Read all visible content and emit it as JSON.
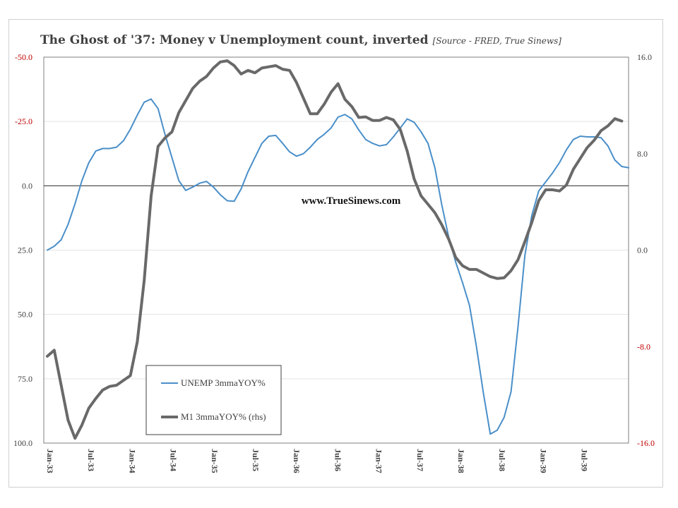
{
  "chart_data": {
    "type": "line",
    "title": "The Ghost of '37: Money v Unemployment count, inverted",
    "source_note": "[Source -  FRED, True Sinews]",
    "watermark": "www.TrueSinews.com",
    "x_tick_labels": [
      "Jan-33",
      "Jul-33",
      "Jan-34",
      "Jul-34",
      "Jan-35",
      "Jul-35",
      "Jan-36",
      "Jul-36",
      "Jan-37",
      "Jul-37",
      "Jan-38",
      "Jul-38",
      "Jan-39",
      "Jul-39"
    ],
    "left_axis": {
      "inverted": true,
      "ylim": [
        -50,
        100
      ],
      "ticks": [
        -50,
        -25,
        0,
        25,
        50,
        75,
        100
      ],
      "tick_labels": [
        "-50.0",
        "-25.0",
        "0.0",
        "25.0",
        "50.0",
        "75.0",
        "100.0"
      ],
      "negative_color": "#c00000"
    },
    "right_axis": {
      "ylim": [
        -16,
        16
      ],
      "ticks": [
        16,
        8,
        0,
        -8,
        -16
      ],
      "tick_labels": [
        "16.0",
        "8.0",
        "0.0",
        "-8.0",
        "-16.0"
      ],
      "negative_color": "#c00000"
    },
    "grid": true,
    "legend_position": "bottom-left",
    "series": [
      {
        "name": "UNEMP 3mmaYOY%",
        "axis": "left",
        "color": "#4a8fc9",
        "start": "Jan-33",
        "values": [
          25,
          23.5,
          21,
          15,
          7,
          -2,
          -9,
          -13.5,
          -14.5,
          -14.5,
          -15,
          -17.5,
          -22,
          -27.5,
          -32.5,
          -33.7,
          -30,
          -20,
          -11,
          -2,
          1.8,
          0.5,
          -1,
          -1.7,
          0.5,
          3.5,
          5.8,
          6,
          1.2,
          -5.5,
          -11,
          -16.5,
          -19.3,
          -19.6,
          -16.5,
          -13.2,
          -11.5,
          -12.5,
          -15,
          -18,
          -20,
          -22.5,
          -26.7,
          -27.7,
          -26,
          -21.7,
          -18,
          -16.5,
          -15.5,
          -16,
          -19,
          -22.5,
          -26,
          -24.7,
          -21,
          -16.5,
          -7,
          7.5,
          20,
          29.6,
          37.7,
          46.5,
          62.5,
          80.5,
          96.5,
          95,
          90,
          80,
          55,
          27,
          11.5,
          2,
          -1.5,
          -5,
          -9,
          -14,
          -18,
          -19.3,
          -19,
          -19,
          -18.7,
          -15.5,
          -10,
          -7.5,
          -7
        ]
      },
      {
        "name": "M1 3mmaYOY% (rhs)",
        "axis": "right",
        "color": "#696969",
        "start": "Jan-33",
        "values": [
          -8.8,
          -8.3,
          -11.2,
          -14.1,
          -15.6,
          -14.5,
          -13.1,
          -12.3,
          -11.6,
          -11.3,
          -11.2,
          -10.8,
          -10.4,
          -7.6,
          -2.5,
          4.5,
          8.6,
          9.3,
          9.8,
          11.4,
          12.4,
          13.4,
          14,
          14.4,
          15.1,
          15.6,
          15.7,
          15.3,
          14.6,
          14.9,
          14.7,
          15.1,
          15.2,
          15.3,
          15,
          14.9,
          13.9,
          12.6,
          11.3,
          11.3,
          12.1,
          13.1,
          13.8,
          12.5,
          11.9,
          11,
          11.05,
          10.75,
          10.75,
          11,
          10.8,
          10,
          8.2,
          5.9,
          4.5,
          3.8,
          3.1,
          2.1,
          0.9,
          -0.6,
          -1.3,
          -1.6,
          -1.6,
          -1.9,
          -2.2,
          -2.35,
          -2.3,
          -1.7,
          -0.8,
          0.7,
          2.3,
          4.1,
          5,
          5,
          4.9,
          5.4,
          6.7,
          7.6,
          8.5,
          9.1,
          9.9,
          10.3,
          10.9,
          10.7
        ]
      }
    ]
  }
}
